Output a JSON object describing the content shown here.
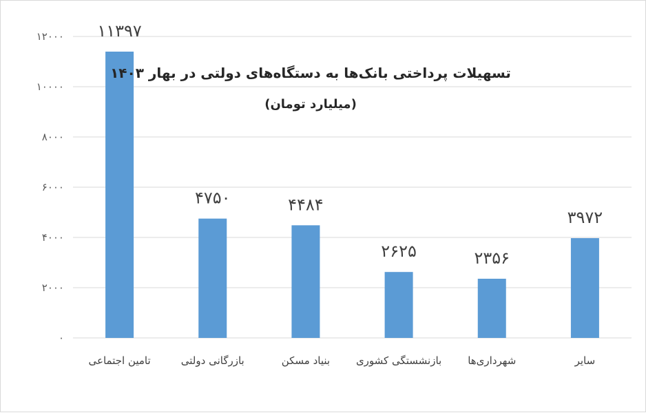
{
  "chart_data": {
    "type": "bar",
    "title": "تسهیلات پرداختی بانک‌ها به دستگاه‌های دولتی در بهار ۱۴۰۳",
    "subtitle": "(میلیارد تومان)",
    "categories": [
      "تامین اجتماعی",
      "بازرگانی دولتی",
      "بنیاد مسکن",
      "بازنشستگی کشوری",
      "شهرداری‌ها",
      "سایر"
    ],
    "values": [
      11397,
      4750,
      4484,
      2625,
      2356,
      3972
    ],
    "value_labels": [
      "۱۱۳۹۷",
      "۴۷۵۰",
      "۴۴۸۴",
      "۲۶۲۵",
      "۲۳۵۶",
      "۳۹۷۲"
    ],
    "ylim": [
      0,
      12000
    ],
    "yticks": [
      0,
      2000,
      4000,
      6000,
      8000,
      10000,
      12000
    ],
    "ytick_labels": [
      "۰",
      "۲۰۰۰",
      "۴۰۰۰",
      "۶۰۰۰",
      "۸۰۰۰",
      "۱۰۰۰۰",
      "۱۲۰۰۰"
    ],
    "grid": true,
    "legend": "none",
    "bar_color": "#5b9bd5"
  }
}
